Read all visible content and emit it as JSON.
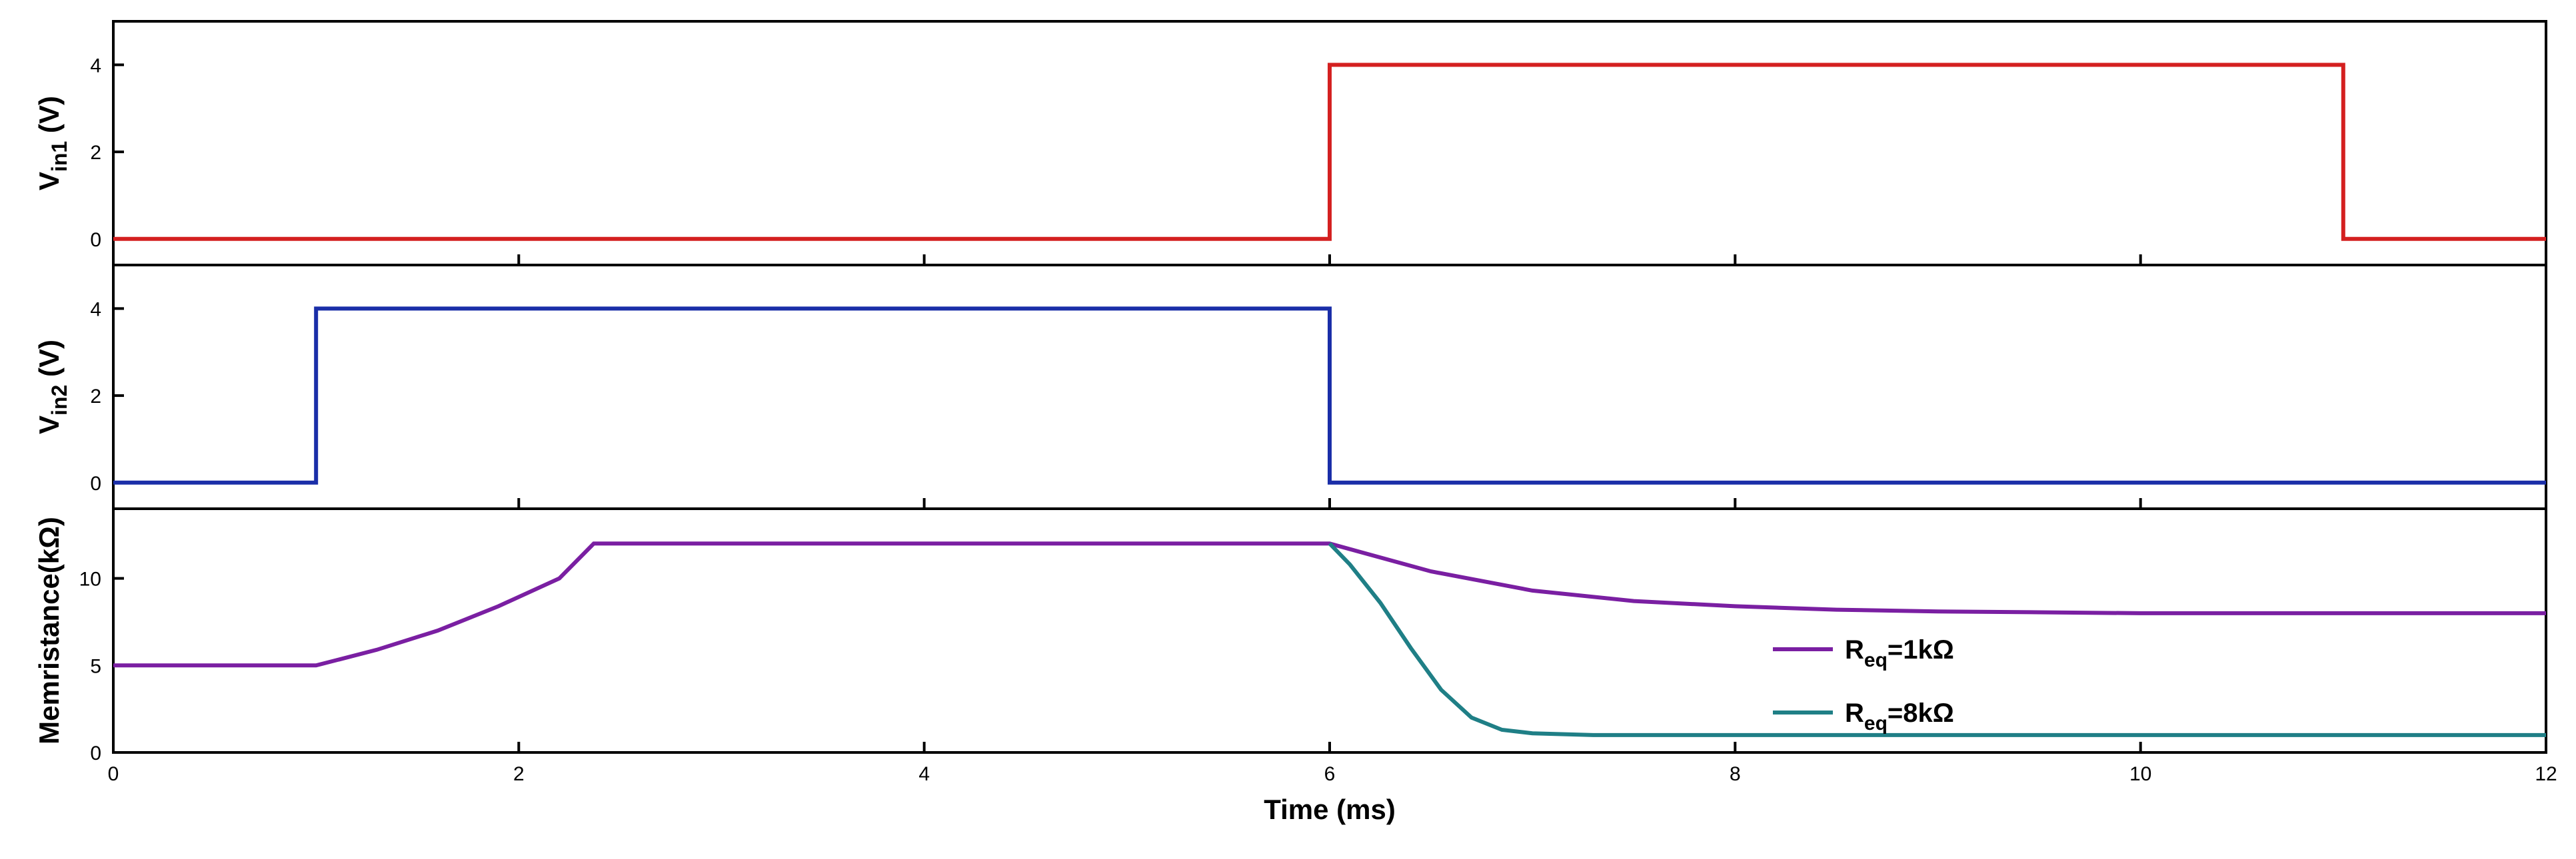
{
  "chart_data": [
    {
      "type": "line",
      "panel": "top",
      "ylabel": {
        "main": "V",
        "sub": "in1",
        "unit": " (V)"
      },
      "xlim": [
        0,
        12
      ],
      "ylim": [
        -0.6,
        5
      ],
      "yticks": [
        0,
        2,
        4
      ],
      "grid": false,
      "series": [
        {
          "color": "#d42020",
          "x": [
            0,
            6,
            6,
            11,
            11,
            12
          ],
          "y": [
            0,
            0,
            4,
            4,
            0,
            0
          ]
        }
      ]
    },
    {
      "type": "line",
      "panel": "middle",
      "ylabel": {
        "main": "V",
        "sub": "in2",
        "unit": " (V)"
      },
      "xlim": [
        0,
        12
      ],
      "ylim": [
        -0.6,
        5
      ],
      "yticks": [
        0,
        2,
        4
      ],
      "grid": false,
      "series": [
        {
          "color": "#1a2ea8",
          "x": [
            0,
            1,
            1,
            6,
            6,
            12
          ],
          "y": [
            0,
            0,
            4,
            4,
            0,
            0
          ]
        }
      ]
    },
    {
      "type": "line",
      "panel": "bottom",
      "ylabel": {
        "main": "Memristance(kΩ)",
        "sub": "",
        "unit": ""
      },
      "xlabel": "Time (ms)",
      "xlim": [
        0,
        12
      ],
      "ylim": [
        0,
        14
      ],
      "yticks": [
        0,
        5,
        10
      ],
      "xticks": [
        0,
        2,
        4,
        6,
        8,
        10,
        12
      ],
      "grid": false,
      "legend": {
        "position": "lower-middle",
        "entries": [
          {
            "prefix": "R",
            "sub": "eq",
            "suffix": "=1kΩ",
            "color": "#7a1fa2"
          },
          {
            "prefix": "R",
            "sub": "eq",
            "suffix": "=8kΩ",
            "color": "#1f7f86"
          }
        ]
      },
      "series": [
        {
          "color": "#7a1fa2",
          "x": [
            0,
            1,
            1.3,
            1.6,
            1.9,
            2.2,
            2.37,
            6,
            6.5,
            7,
            7.5,
            8,
            8.5,
            9,
            9.5,
            10,
            11,
            12
          ],
          "y": [
            5,
            5,
            5.9,
            7.0,
            8.4,
            10.0,
            12,
            12,
            10.4,
            9.3,
            8.7,
            8.4,
            8.2,
            8.1,
            8.05,
            8.0,
            8.0,
            8.0
          ]
        },
        {
          "color": "#1f7f86",
          "x": [
            6,
            6.1,
            6.25,
            6.4,
            6.55,
            6.7,
            6.85,
            7,
            7.3,
            8,
            9,
            10,
            11,
            12
          ],
          "y": [
            12,
            10.8,
            8.6,
            6.0,
            3.6,
            2.0,
            1.3,
            1.1,
            1.0,
            1.0,
            1.0,
            1.0,
            1.0,
            1.0
          ]
        }
      ]
    }
  ]
}
